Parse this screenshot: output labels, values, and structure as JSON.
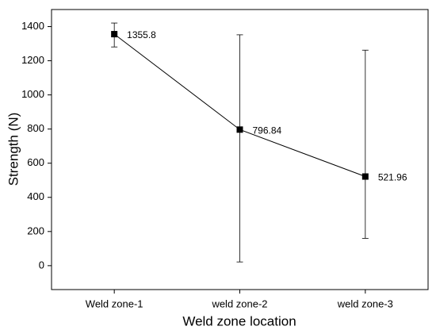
{
  "chart_data": {
    "type": "line",
    "x_label": "Weld zone location",
    "y_label": "Strength (N)",
    "categories": [
      "Weld zone-1",
      "weld zone-2",
      "weld zone-3"
    ],
    "values": [
      1355.8,
      796.84,
      521.96
    ],
    "error_lower": [
      75,
      775,
      362
    ],
    "error_upper": [
      65,
      555,
      740
    ],
    "color": "#000000",
    "ylim": [
      -140,
      1500
    ],
    "yticks": [
      0,
      200,
      400,
      600,
      800,
      1000,
      1200,
      1400
    ]
  }
}
